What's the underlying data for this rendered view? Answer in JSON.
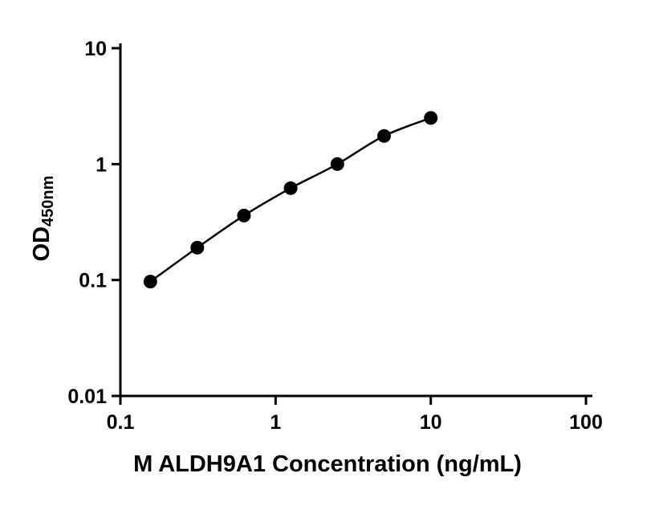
{
  "chart_data": {
    "type": "scatter",
    "title": "",
    "xlabel": "M ALDH9A1 Concentration (ng/mL)",
    "ylabel_main": "OD",
    "ylabel_sub": "450nm",
    "x_scale": "log",
    "y_scale": "log",
    "xlim": [
      0.1,
      100
    ],
    "ylim": [
      0.01,
      10
    ],
    "x_ticks": [
      0.1,
      1,
      10,
      100
    ],
    "x_tick_labels": [
      "0.1",
      "1",
      "10",
      "100"
    ],
    "y_ticks": [
      0.01,
      0.1,
      1,
      10
    ],
    "y_tick_labels": [
      "0.01",
      "0.1",
      "1",
      "10"
    ],
    "x": [
      0.156,
      0.313,
      0.625,
      1.25,
      2.5,
      5,
      10
    ],
    "y": [
      0.097,
      0.19,
      0.36,
      0.62,
      1.0,
      1.75,
      2.5
    ],
    "grid": false,
    "legend": null,
    "marker_shape": "circle",
    "marker_radius": 8.5,
    "marker_color": "#000000",
    "line_color": "#000000",
    "axis_color": "#000000",
    "background_color": "#ffffff"
  }
}
